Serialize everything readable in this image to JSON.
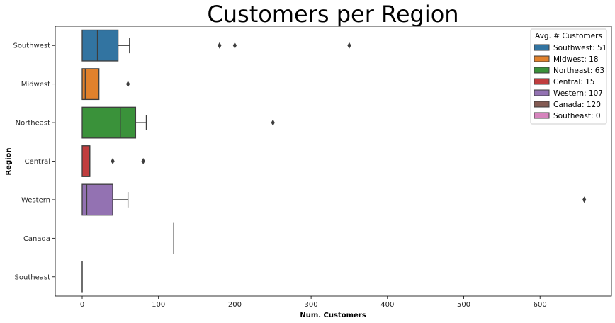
{
  "chart_data": {
    "type": "box",
    "orientation": "horizontal",
    "title": "Customers per Region",
    "xlabel": "Num. Customers",
    "ylabel": "Region",
    "xlim": [
      -35,
      690
    ],
    "xticks": [
      0,
      100,
      200,
      300,
      400,
      500,
      600
    ],
    "categories": [
      "Southwest",
      "Midwest",
      "Northeast",
      "Central",
      "Western",
      "Canada",
      "Southeast"
    ],
    "series": [
      {
        "name": "Southwest",
        "color": "#3274a1",
        "whisker_low": 0,
        "q1": 0,
        "median": 20,
        "q3": 47,
        "whisker_high": 62,
        "outliers": [
          180,
          200,
          350
        ]
      },
      {
        "name": "Midwest",
        "color": "#e1812c",
        "whisker_low": 0,
        "q1": 0,
        "median": 4,
        "q3": 22,
        "whisker_high": 22,
        "outliers": [
          60
        ]
      },
      {
        "name": "Northeast",
        "color": "#3a923a",
        "whisker_low": 0,
        "q1": 0,
        "median": 50,
        "q3": 70,
        "whisker_high": 84,
        "outliers": [
          250
        ]
      },
      {
        "name": "Central",
        "color": "#c03d3e",
        "whisker_low": 0,
        "q1": 0,
        "median": 10,
        "q3": 10,
        "whisker_high": 10,
        "outliers": [
          40,
          80
        ]
      },
      {
        "name": "Western",
        "color": "#9372b2",
        "whisker_low": 0,
        "q1": 0,
        "median": 6,
        "q3": 40,
        "whisker_high": 60,
        "outliers": [
          658
        ]
      },
      {
        "name": "Canada",
        "color": "#845b53",
        "whisker_low": 120,
        "q1": 120,
        "median": 120,
        "q3": 120,
        "whisker_high": 120,
        "outliers": []
      },
      {
        "name": "Southeast",
        "color": "#d684bd",
        "whisker_low": 0,
        "q1": 0,
        "median": 0,
        "q3": 0,
        "whisker_high": 0,
        "outliers": []
      }
    ],
    "legend": {
      "title": "Avg. # Customers",
      "placement": "top-right",
      "entries": [
        {
          "label": "Southwest: 51",
          "color": "#3274a1"
        },
        {
          "label": "Midwest: 18",
          "color": "#e1812c"
        },
        {
          "label": "Northeast: 63",
          "color": "#3a923a"
        },
        {
          "label": "Central: 15",
          "color": "#c03d3e"
        },
        {
          "label": "Western: 107",
          "color": "#9372b2"
        },
        {
          "label": "Canada: 120",
          "color": "#845b53"
        },
        {
          "label": "Southeast: 0",
          "color": "#d684bd"
        }
      ]
    },
    "grid": false
  }
}
